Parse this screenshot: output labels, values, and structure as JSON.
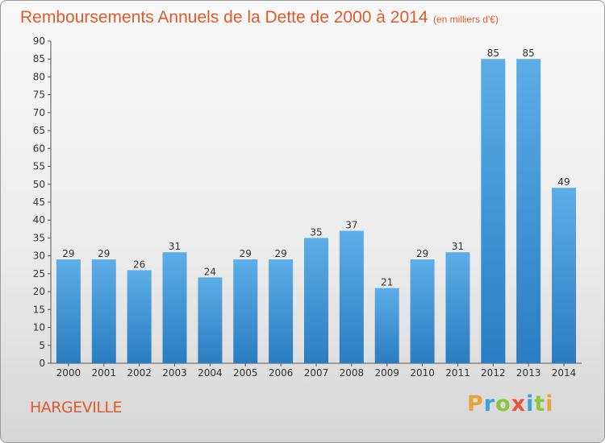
{
  "chart_data": {
    "type": "bar",
    "title": "Remboursements Annuels de la Dette de 2000 à 2014",
    "subtitle": "(en milliers d'€)",
    "categories": [
      "2000",
      "2001",
      "2002",
      "2003",
      "2004",
      "2005",
      "2006",
      "2007",
      "2008",
      "2009",
      "2010",
      "2011",
      "2012",
      "2013",
      "2014"
    ],
    "values": [
      29,
      29,
      26,
      31,
      24,
      29,
      29,
      35,
      37,
      21,
      29,
      31,
      85,
      85,
      49
    ],
    "ylim": [
      0,
      90
    ],
    "ytick_step": 5,
    "xlabel": "",
    "ylabel": "",
    "grid": false,
    "bar_color_top": "#5dade8",
    "bar_color_bottom": "#2a7dc0"
  },
  "place_name": "HARGEVILLE",
  "logo": {
    "text": "Proxiti",
    "letters": [
      "P",
      "r",
      "o",
      "x",
      "i",
      "t",
      "i"
    ],
    "colors": [
      "#e8a23a",
      "#3aa3d8",
      "#8cc63f",
      "#e8553a",
      "#3aa3d8",
      "#8cc63f",
      "#e8a23a"
    ]
  }
}
